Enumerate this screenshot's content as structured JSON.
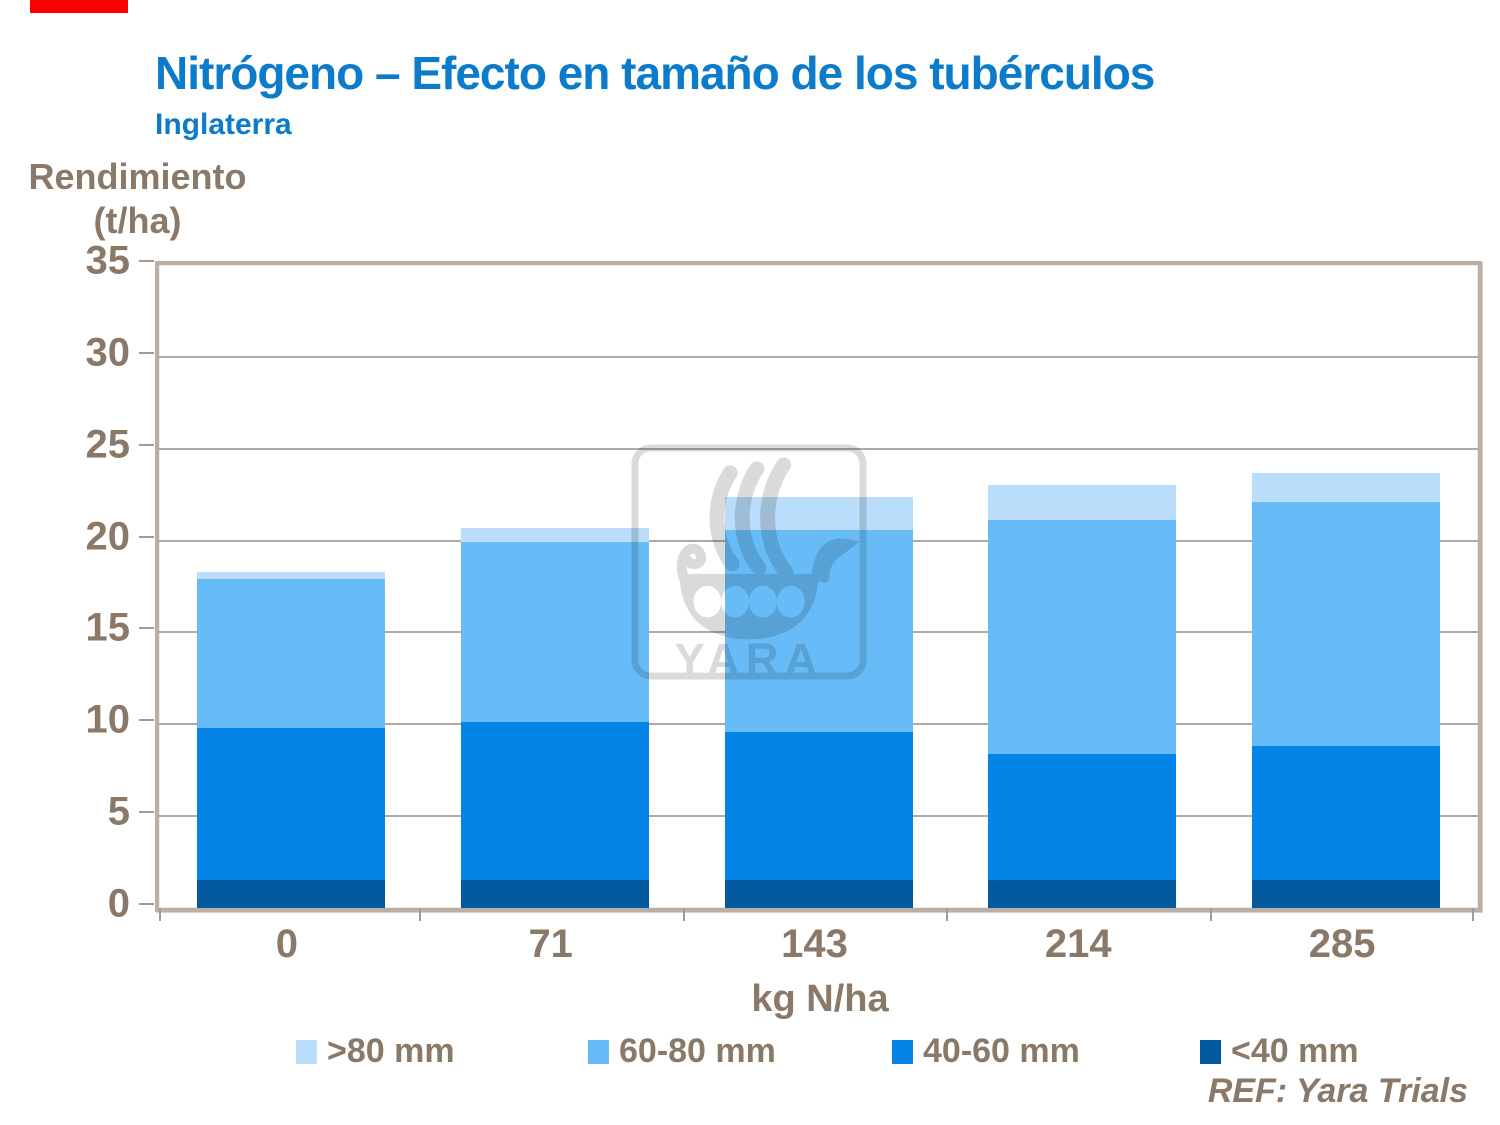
{
  "accent_bar_color": "#ff0000",
  "header": {
    "title": "Nitrógeno – Efecto en tamaño de los tubérculos",
    "subtitle": "Inglaterra"
  },
  "y_axis_title": {
    "line1": "Rendimiento",
    "line2": "(t/ha)"
  },
  "watermark": {
    "text": "YARA"
  },
  "footer": {
    "ref": "REF: Yara Trials"
  },
  "chart_data": {
    "type": "bar",
    "stacked": true,
    "title": "Nitrógeno – Efecto en tamaño de los tubérculos",
    "subtitle": "Inglaterra",
    "ylabel": "Rendimiento (t/ha)",
    "xlabel": "kg N/ha",
    "categories": [
      "0",
      "71",
      "143",
      "214",
      "285"
    ],
    "series": [
      {
        "name": "<40 mm",
        "color": "#045a9f",
        "values": [
          1.5,
          1.5,
          1.5,
          1.5,
          1.5
        ]
      },
      {
        "name": "40-60 mm",
        "color": "#0584e8",
        "values": [
          8.3,
          8.6,
          8.1,
          6.9,
          7.3
        ]
      },
      {
        "name": "60-80 mm",
        "color": "#67bcf8",
        "values": [
          8.1,
          9.8,
          11.0,
          12.7,
          13.3
        ]
      },
      {
        "name": ">80 mm",
        "color": "#b9ddfa",
        "values": [
          0.4,
          0.8,
          1.8,
          1.9,
          1.6
        ]
      }
    ],
    "totals": [
      18.3,
      20.7,
      22.4,
      23.0,
      23.7
    ],
    "ylim": [
      0,
      35
    ],
    "yticks": [
      0,
      5,
      10,
      15,
      20,
      25,
      30,
      35
    ],
    "grid": true,
    "legend_position": "bottom",
    "legend_order": [
      ">80 mm",
      "60-80 mm",
      "40-60 mm",
      "<40 mm"
    ]
  }
}
